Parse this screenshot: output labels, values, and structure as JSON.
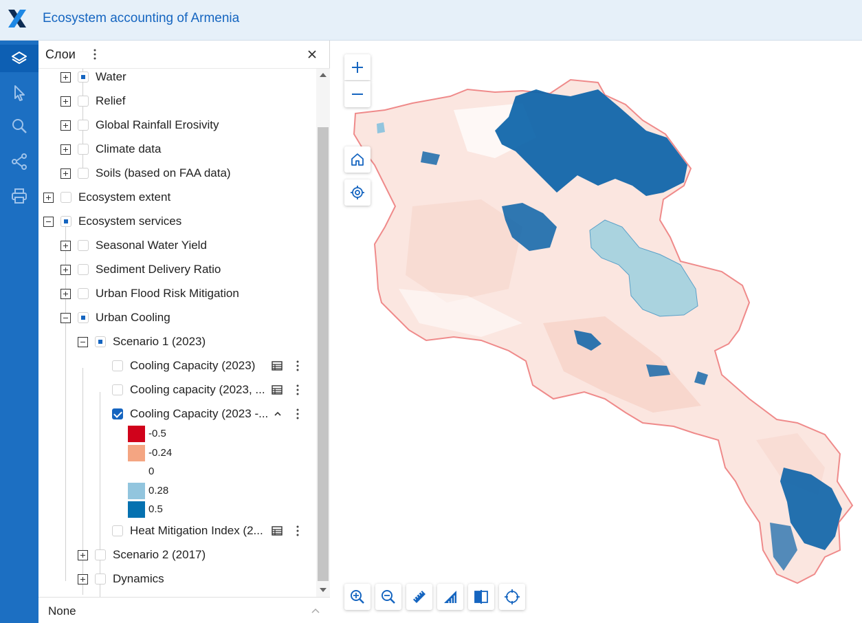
{
  "header": {
    "title": "Ecosystem accounting of Armenia",
    "logo": "x-logo"
  },
  "toolbar": {
    "tools": [
      "layers-icon",
      "pointer-icon",
      "search-icon",
      "share-icon",
      "print-icon"
    ],
    "active": "layers-icon"
  },
  "panel": {
    "title": "Слои",
    "items": [
      {
        "label": "Water",
        "state": "partial",
        "expander": "plus"
      },
      {
        "label": "Relief",
        "state": "unchecked",
        "expander": "plus"
      },
      {
        "label": "Global Rainfall Erosivity",
        "state": "unchecked",
        "expander": "plus"
      },
      {
        "label": "Climate data",
        "state": "unchecked",
        "expander": "plus"
      },
      {
        "label": "Soils (based on FAA data)",
        "state": "unchecked",
        "expander": "plus"
      },
      {
        "label": "Ecosystem extent",
        "state": "unchecked",
        "expander": "plus"
      },
      {
        "label": "Ecosystem services",
        "state": "partial",
        "expander": "minus"
      },
      {
        "label": "Seasonal Water Yield",
        "state": "unchecked",
        "expander": "plus"
      },
      {
        "label": "Sediment Delivery Ratio",
        "state": "unchecked",
        "expander": "plus"
      },
      {
        "label": "Urban Flood Risk Mitigation",
        "state": "unchecked",
        "expander": "plus"
      },
      {
        "label": "Urban Cooling",
        "state": "partial",
        "expander": "minus"
      },
      {
        "label": "Scenario 1 (2023)",
        "state": "partial",
        "expander": "minus"
      },
      {
        "label": "Cooling Capacity (2023)",
        "state": "unchecked"
      },
      {
        "label": "Cooling capacity (2023, ...",
        "state": "unchecked"
      },
      {
        "label": "Cooling Capacity (2023 -...",
        "state": "checked"
      },
      {
        "label": "Heat Mitigation Index (2...",
        "state": "unchecked"
      },
      {
        "label": "Scenario 2 (2017)",
        "state": "unchecked",
        "expander": "plus"
      },
      {
        "label": "Dynamics",
        "state": "unchecked",
        "expander": "plus"
      }
    ],
    "legend": [
      {
        "label": "-0.5",
        "color": "#d0021b"
      },
      {
        "label": "-0.24",
        "color": "#f4a582"
      },
      {
        "label": "0",
        "color": "#ffffff"
      },
      {
        "label": "0.28",
        "color": "#92c5de"
      },
      {
        "label": "0.5",
        "color": "#0571b0"
      }
    ],
    "footer": {
      "basemap": "None"
    }
  },
  "map": {
    "controls": [
      "zoom-in-icon",
      "zoom-out-icon",
      "home-icon",
      "locate-icon"
    ],
    "bottom_tools": [
      "zoom-in-tool-icon",
      "zoom-out-tool-icon",
      "measure-distance-icon",
      "measure-area-icon",
      "compare-icon",
      "crosshair-icon"
    ],
    "colors": {
      "border": "#ef8a8a",
      "fill": "#fbe3dc",
      "water": "#aad3df",
      "high": "#0b63a8"
    }
  }
}
